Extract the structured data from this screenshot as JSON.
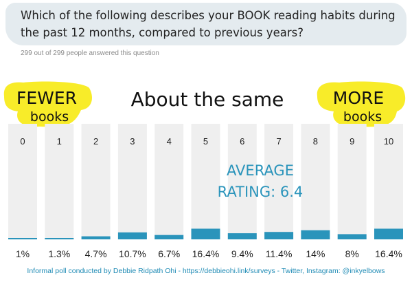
{
  "question": {
    "text": "Which of the following describes your BOOK reading habits during the past 12 months, compared to previous years?",
    "answered": "299 out of 299 people answered this question"
  },
  "chart_data": {
    "type": "bar",
    "categories": [
      "0",
      "1",
      "2",
      "3",
      "4",
      "5",
      "6",
      "7",
      "8",
      "9",
      "10"
    ],
    "values": [
      1,
      1.3,
      4.7,
      10.7,
      6.7,
      16.4,
      9.4,
      11.4,
      14,
      8,
      16.4
    ],
    "value_labels": [
      "1%",
      "1.3%",
      "4.7%",
      "10.7%",
      "6.7%",
      "16.4%",
      "9.4%",
      "11.4%",
      "14%",
      "8%",
      "16.4%"
    ],
    "ylim": [
      0,
      100
    ],
    "bar_color": "#2a94bb",
    "track_color": "#efefef",
    "highlight_color": "#f8ec29",
    "labels": {
      "left_big": "FEWER",
      "left_small": "books",
      "center": "About the same",
      "right_big": "MORE",
      "right_small": "books"
    },
    "annotation": {
      "line1": "AVERAGE",
      "line2": "RATING: 6.4"
    }
  },
  "footer": {
    "text": "Informal poll conducted by Debbie Ridpath Ohi - https://debbieohi.link/surveys - Twitter, Instagram: @inkyelbows"
  }
}
